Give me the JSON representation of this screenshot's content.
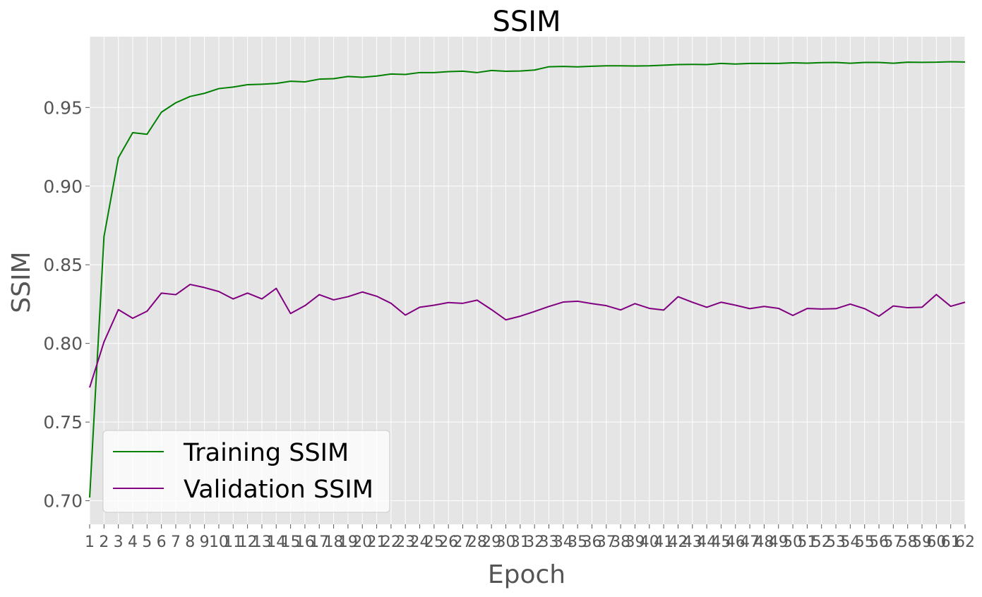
{
  "chart_data": {
    "type": "line",
    "title": "SSIM",
    "xlabel": "Epoch",
    "ylabel": "SSIM",
    "xlim": [
      1,
      62
    ],
    "ylim": [
      0.685,
      0.995
    ],
    "yticks": [
      0.7,
      0.75,
      0.8,
      0.85,
      0.9,
      0.95
    ],
    "ytick_labels": [
      "0.70",
      "0.75",
      "0.80",
      "0.85",
      "0.90",
      "0.95"
    ],
    "grid": true,
    "legend_position": "bottom-left",
    "x": [
      1,
      2,
      3,
      4,
      5,
      6,
      7,
      8,
      9,
      10,
      11,
      12,
      13,
      14,
      15,
      16,
      17,
      18,
      19,
      20,
      21,
      22,
      23,
      24,
      25,
      26,
      27,
      28,
      29,
      30,
      31,
      32,
      33,
      34,
      35,
      36,
      37,
      38,
      39,
      40,
      41,
      42,
      43,
      44,
      45,
      46,
      47,
      48,
      49,
      50,
      51,
      52,
      53,
      54,
      55,
      56,
      57,
      58,
      59,
      60,
      61,
      62
    ],
    "series": [
      {
        "name": "Training SSIM",
        "color": "#008000",
        "values": [
          0.702,
          0.868,
          0.918,
          0.934,
          0.933,
          0.947,
          0.953,
          0.957,
          0.959,
          0.962,
          0.963,
          0.9645,
          0.9648,
          0.9653,
          0.9667,
          0.9663,
          0.968,
          0.9683,
          0.9697,
          0.9692,
          0.97,
          0.9713,
          0.971,
          0.9722,
          0.9722,
          0.9728,
          0.9731,
          0.9722,
          0.9735,
          0.973,
          0.9732,
          0.9738,
          0.9759,
          0.9761,
          0.9758,
          0.9762,
          0.9765,
          0.9765,
          0.9764,
          0.9765,
          0.9769,
          0.9773,
          0.9774,
          0.9773,
          0.978,
          0.9776,
          0.978,
          0.978,
          0.978,
          0.9784,
          0.9782,
          0.9785,
          0.9786,
          0.9781,
          0.9786,
          0.9786,
          0.9781,
          0.9788,
          0.9787,
          0.9788,
          0.9791,
          0.9789
        ]
      },
      {
        "name": "Validation SSIM",
        "color": "#800080",
        "values": [
          0.772,
          0.801,
          0.8215,
          0.816,
          0.8205,
          0.832,
          0.831,
          0.8375,
          0.8355,
          0.833,
          0.8283,
          0.832,
          0.8283,
          0.835,
          0.819,
          0.824,
          0.831,
          0.8277,
          0.8297,
          0.8327,
          0.83,
          0.8255,
          0.818,
          0.823,
          0.8243,
          0.826,
          0.8255,
          0.8275,
          0.8215,
          0.815,
          0.8173,
          0.8203,
          0.8235,
          0.8263,
          0.8268,
          0.8253,
          0.824,
          0.8213,
          0.8253,
          0.8223,
          0.8212,
          0.8297,
          0.8262,
          0.823,
          0.8262,
          0.8243,
          0.8221,
          0.8235,
          0.8223,
          0.8178,
          0.8222,
          0.8219,
          0.8221,
          0.825,
          0.8221,
          0.8173,
          0.8238,
          0.8227,
          0.823,
          0.8311,
          0.8236,
          0.8262
        ]
      }
    ]
  }
}
